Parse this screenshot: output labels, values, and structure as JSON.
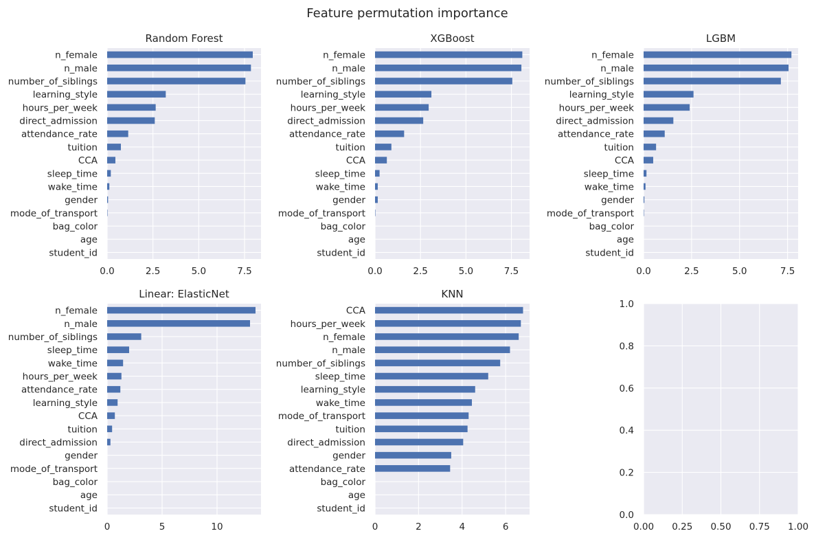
{
  "figure": {
    "title": "Feature permutation importance"
  },
  "style": {
    "axes_bg": "#eaeaf2",
    "grid": "#ffffff",
    "bar": "#4c72b0",
    "text": "#262626"
  },
  "chart_data": [
    {
      "type": "bar",
      "orientation": "horizontal",
      "title": "Random Forest",
      "categories": [
        "n_female",
        "n_male",
        "number_of_siblings",
        "learning_style",
        "hours_per_week",
        "direct_admission",
        "attendance_rate",
        "tuition",
        "CCA",
        "sleep_time",
        "wake_time",
        "gender",
        "mode_of_transport",
        "bag_color",
        "age",
        "student_id"
      ],
      "values": [
        7.95,
        7.85,
        7.55,
        3.2,
        2.65,
        2.6,
        1.15,
        0.75,
        0.45,
        0.2,
        0.12,
        0.05,
        0.01,
        0,
        0,
        0
      ],
      "xlim": [
        0,
        8.4
      ],
      "xticks": [
        "0.0",
        "2.5",
        "5.0",
        "7.5"
      ],
      "xtick_values": [
        0,
        2.5,
        5,
        7.5
      ],
      "grid": true
    },
    {
      "type": "bar",
      "orientation": "horizontal",
      "title": "XGBoost",
      "categories": [
        "n_female",
        "n_male",
        "number_of_siblings",
        "learning_style",
        "hours_per_week",
        "direct_admission",
        "attendance_rate",
        "tuition",
        "CCA",
        "sleep_time",
        "wake_time",
        "gender",
        "mode_of_transport",
        "bag_color",
        "age",
        "student_id"
      ],
      "values": [
        8.1,
        8.05,
        7.55,
        3.1,
        2.95,
        2.65,
        1.6,
        0.9,
        0.65,
        0.25,
        0.15,
        0.15,
        0.01,
        0,
        0,
        0
      ],
      "xlim": [
        0,
        8.5
      ],
      "xticks": [
        "0.0",
        "2.5",
        "5.0",
        "7.5"
      ],
      "xtick_values": [
        0,
        2.5,
        5,
        7.5
      ],
      "grid": true
    },
    {
      "type": "bar",
      "orientation": "horizontal",
      "title": "LGBM",
      "categories": [
        "n_female",
        "n_male",
        "number_of_siblings",
        "learning_style",
        "hours_per_week",
        "direct_admission",
        "attendance_rate",
        "tuition",
        "CCA",
        "sleep_time",
        "wake_time",
        "gender",
        "mode_of_transport",
        "bag_color",
        "age",
        "student_id"
      ],
      "values": [
        7.7,
        7.55,
        7.15,
        2.6,
        2.4,
        1.55,
        1.1,
        0.65,
        0.5,
        0.15,
        0.1,
        0.04,
        0.01,
        0,
        0,
        0
      ],
      "xlim": [
        0,
        8.05
      ],
      "xticks": [
        "0.0",
        "2.5",
        "5.0",
        "7.5"
      ],
      "xtick_values": [
        0,
        2.5,
        5,
        7.5
      ],
      "grid": true
    },
    {
      "type": "bar",
      "orientation": "horizontal",
      "title": "Linear: ElasticNet",
      "categories": [
        "n_female",
        "n_male",
        "number_of_siblings",
        "sleep_time",
        "wake_time",
        "hours_per_week",
        "attendance_rate",
        "learning_style",
        "CCA",
        "tuition",
        "direct_admission",
        "gender",
        "mode_of_transport",
        "bag_color",
        "age",
        "student_id"
      ],
      "values": [
        13.5,
        13.0,
        3.1,
        2.0,
        1.45,
        1.3,
        1.2,
        0.95,
        0.7,
        0.45,
        0.3,
        0,
        0,
        0,
        0,
        0
      ],
      "xlim": [
        0,
        14
      ],
      "xticks": [
        "0",
        "5",
        "10"
      ],
      "xtick_values": [
        0,
        5,
        10
      ],
      "grid": true
    },
    {
      "type": "bar",
      "orientation": "horizontal",
      "title": "KNN",
      "categories": [
        "CCA",
        "hours_per_week",
        "n_female",
        "n_male",
        "number_of_siblings",
        "sleep_time",
        "learning_style",
        "wake_time",
        "mode_of_transport",
        "tuition",
        "direct_admission",
        "gender",
        "attendance_rate",
        "bag_color",
        "age",
        "student_id"
      ],
      "values": [
        6.8,
        6.7,
        6.6,
        6.2,
        5.75,
        5.2,
        4.6,
        4.45,
        4.3,
        4.25,
        4.05,
        3.5,
        3.45,
        0,
        0,
        0
      ],
      "xlim": [
        0,
        7.1
      ],
      "xticks": [
        "0",
        "2",
        "4",
        "6"
      ],
      "xtick_values": [
        0,
        2,
        4,
        6
      ],
      "grid": true
    },
    {
      "type": "empty",
      "title": "",
      "xlim": [
        0,
        1
      ],
      "ylim": [
        0,
        1
      ],
      "xticks": [
        "0.00",
        "0.25",
        "0.50",
        "0.75",
        "1.00"
      ],
      "xtick_values": [
        0,
        0.25,
        0.5,
        0.75,
        1.0
      ],
      "yticks": [
        "0.0",
        "0.2",
        "0.4",
        "0.6",
        "0.8",
        "1.0"
      ],
      "ytick_values": [
        0,
        0.2,
        0.4,
        0.6,
        0.8,
        1.0
      ],
      "grid": true
    }
  ]
}
